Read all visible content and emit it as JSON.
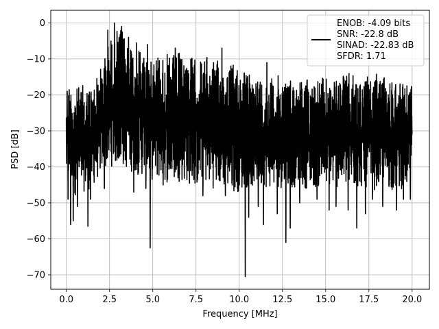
{
  "chart_data": {
    "type": "line",
    "title": "",
    "xlabel": "Frequency [MHz]",
    "ylabel": "PSD [dB]",
    "xlim": [
      -0.9,
      21.0
    ],
    "ylim": [
      -74,
      3.5
    ],
    "xticks": [
      0.0,
      2.5,
      5.0,
      7.5,
      10.0,
      12.5,
      15.0,
      17.5,
      20.0
    ],
    "xtick_labels": [
      "0.0",
      "2.5",
      "5.0",
      "7.5",
      "10.0",
      "12.5",
      "15.0",
      "17.5",
      "20.0"
    ],
    "yticks": [
      0,
      -10,
      -20,
      -30,
      -40,
      -50,
      -60,
      -70
    ],
    "ytick_labels": [
      "0",
      "−10",
      "−20",
      "−30",
      "−40",
      "−50",
      "−60",
      "−70"
    ],
    "grid": true,
    "legend_position": "top-right",
    "legend_entries": [
      "ENOB: -4.09 bits",
      "SNR: -22.8 dB",
      "SINAD: -22.83 dB",
      "SFDR: 1.71"
    ],
    "series": [
      {
        "color": "#000000",
        "envelope": {
          "x": [
            0.0,
            0.5,
            1.0,
            1.5,
            2.0,
            2.5,
            3.0,
            3.5,
            4.0,
            4.5,
            5.0,
            5.5,
            6.0,
            6.5,
            7.0,
            7.5,
            8.0,
            8.5,
            9.0,
            9.5,
            10.0,
            10.5,
            11.0,
            11.5,
            12.0,
            12.5,
            13.0,
            13.5,
            14.0,
            14.5,
            15.0,
            15.5,
            16.0,
            16.5,
            17.0,
            17.5,
            18.0,
            18.5,
            19.0,
            19.5,
            20.0
          ],
          "upper": [
            -15,
            -18,
            -17,
            -17,
            -12,
            -4,
            -1,
            -3,
            -5,
            -7,
            -6,
            -8,
            -9,
            -8,
            -8,
            -10,
            -9,
            -10,
            -11,
            -11,
            -11,
            -14,
            -14,
            -15,
            -15,
            -14,
            -15,
            -15,
            -15,
            -15,
            -15,
            -16,
            -14,
            -14,
            -15,
            -15,
            -14,
            -15,
            -15,
            -15,
            -16
          ],
          "lower": [
            -45,
            -48,
            -47,
            -46,
            -42,
            -40,
            -40,
            -41,
            -42,
            -43,
            -44,
            -44,
            -45,
            -44,
            -45,
            -46,
            -45,
            -46,
            -46,
            -47,
            -47,
            -46,
            -46,
            -46,
            -46,
            -46,
            -46,
            -46,
            -46,
            -46,
            -46,
            -46,
            -46,
            -47,
            -46,
            -46,
            -47,
            -46,
            -47,
            -46,
            -46
          ]
        },
        "dips": [
          {
            "x": 0.1,
            "y": -49
          },
          {
            "x": 0.25,
            "y": -56
          },
          {
            "x": 0.4,
            "y": -55
          },
          {
            "x": 0.65,
            "y": -51
          },
          {
            "x": 1.25,
            "y": -56.5
          },
          {
            "x": 1.4,
            "y": -49
          },
          {
            "x": 2.2,
            "y": -46
          },
          {
            "x": 3.9,
            "y": -47
          },
          {
            "x": 4.6,
            "y": -46
          },
          {
            "x": 4.85,
            "y": -62.5
          },
          {
            "x": 5.6,
            "y": -45
          },
          {
            "x": 7.9,
            "y": -48
          },
          {
            "x": 9.2,
            "y": -48
          },
          {
            "x": 9.9,
            "y": -46
          },
          {
            "x": 10.35,
            "y": -70.5
          },
          {
            "x": 10.55,
            "y": -54
          },
          {
            "x": 11.1,
            "y": -51
          },
          {
            "x": 11.4,
            "y": -56
          },
          {
            "x": 12.2,
            "y": -53
          },
          {
            "x": 12.7,
            "y": -61
          },
          {
            "x": 12.95,
            "y": -57
          },
          {
            "x": 13.5,
            "y": -50
          },
          {
            "x": 14.5,
            "y": -49
          },
          {
            "x": 15.2,
            "y": -52
          },
          {
            "x": 15.6,
            "y": -51
          },
          {
            "x": 16.3,
            "y": -52
          },
          {
            "x": 16.8,
            "y": -57
          },
          {
            "x": 17.3,
            "y": -53
          },
          {
            "x": 17.7,
            "y": -49
          },
          {
            "x": 18.3,
            "y": -51
          },
          {
            "x": 19.1,
            "y": -52
          },
          {
            "x": 19.5,
            "y": -49
          },
          {
            "x": 19.9,
            "y": -49
          }
        ],
        "peaks": [
          {
            "x": 2.78,
            "y": 0.0
          },
          {
            "x": 2.4,
            "y": -2
          },
          {
            "x": 3.2,
            "y": -1
          },
          {
            "x": 3.6,
            "y": -4
          },
          {
            "x": 4.7,
            "y": -6
          },
          {
            "x": 6.3,
            "y": -7
          },
          {
            "x": 9.0,
            "y": -7
          },
          {
            "x": 11.6,
            "y": -11
          }
        ]
      }
    ]
  }
}
